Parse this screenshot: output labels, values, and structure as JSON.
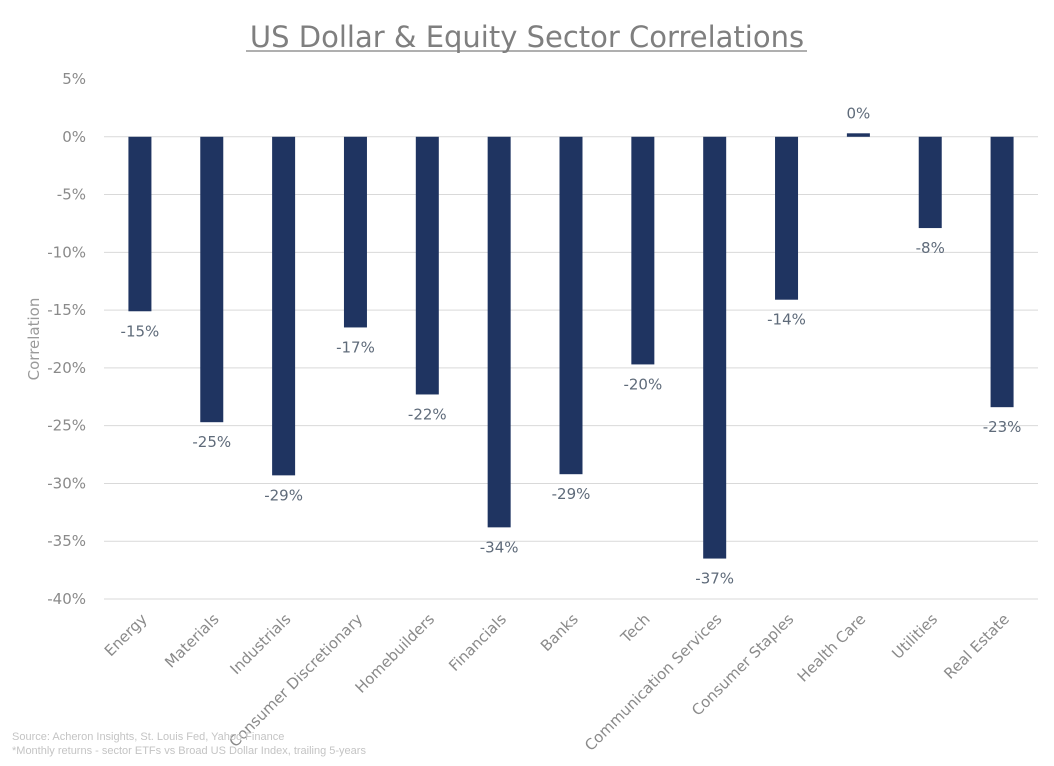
{
  "chart_data": {
    "type": "bar",
    "title": "US Dollar & Equity Sector Correlations",
    "xlabel": "",
    "ylabel": "Correlation",
    "ylim": [
      -40,
      5
    ],
    "yticks": [
      5,
      0,
      -5,
      -10,
      -15,
      -20,
      -25,
      -30,
      -35,
      -40
    ],
    "ytick_labels": [
      "5%",
      "0%",
      "-5%",
      "-10%",
      "-15%",
      "-20%",
      "-25%",
      "-30%",
      "-35%",
      "-40%"
    ],
    "grid": true,
    "categories": [
      "Energy",
      "Materials",
      "Industrials",
      "Consumer Discretionary",
      "Homebuilders",
      "Financials",
      "Banks",
      "Tech",
      "Communication Services",
      "Consumer Staples",
      "Health Care",
      "Utilities",
      "Real Estate"
    ],
    "values": [
      -15.1,
      -24.7,
      -29.3,
      -16.5,
      -22.3,
      -33.8,
      -29.2,
      -19.7,
      -36.5,
      -14.1,
      0.3,
      -7.9,
      -23.4
    ],
    "data_labels": [
      "-15%",
      "-25%",
      "-29%",
      "-17%",
      "-22%",
      "-34%",
      "-29%",
      "-20%",
      "-37%",
      "-14%",
      "0%",
      "-8%",
      "-23%"
    ],
    "bar_color": "#1f3461"
  },
  "footnotes": {
    "source": "Source: Acheron Insights, St. Louis Fed, Yahoo Finance",
    "note": "*Monthly returns - sector ETFs vs Broad US Dollar Index, trailing 5-years"
  }
}
